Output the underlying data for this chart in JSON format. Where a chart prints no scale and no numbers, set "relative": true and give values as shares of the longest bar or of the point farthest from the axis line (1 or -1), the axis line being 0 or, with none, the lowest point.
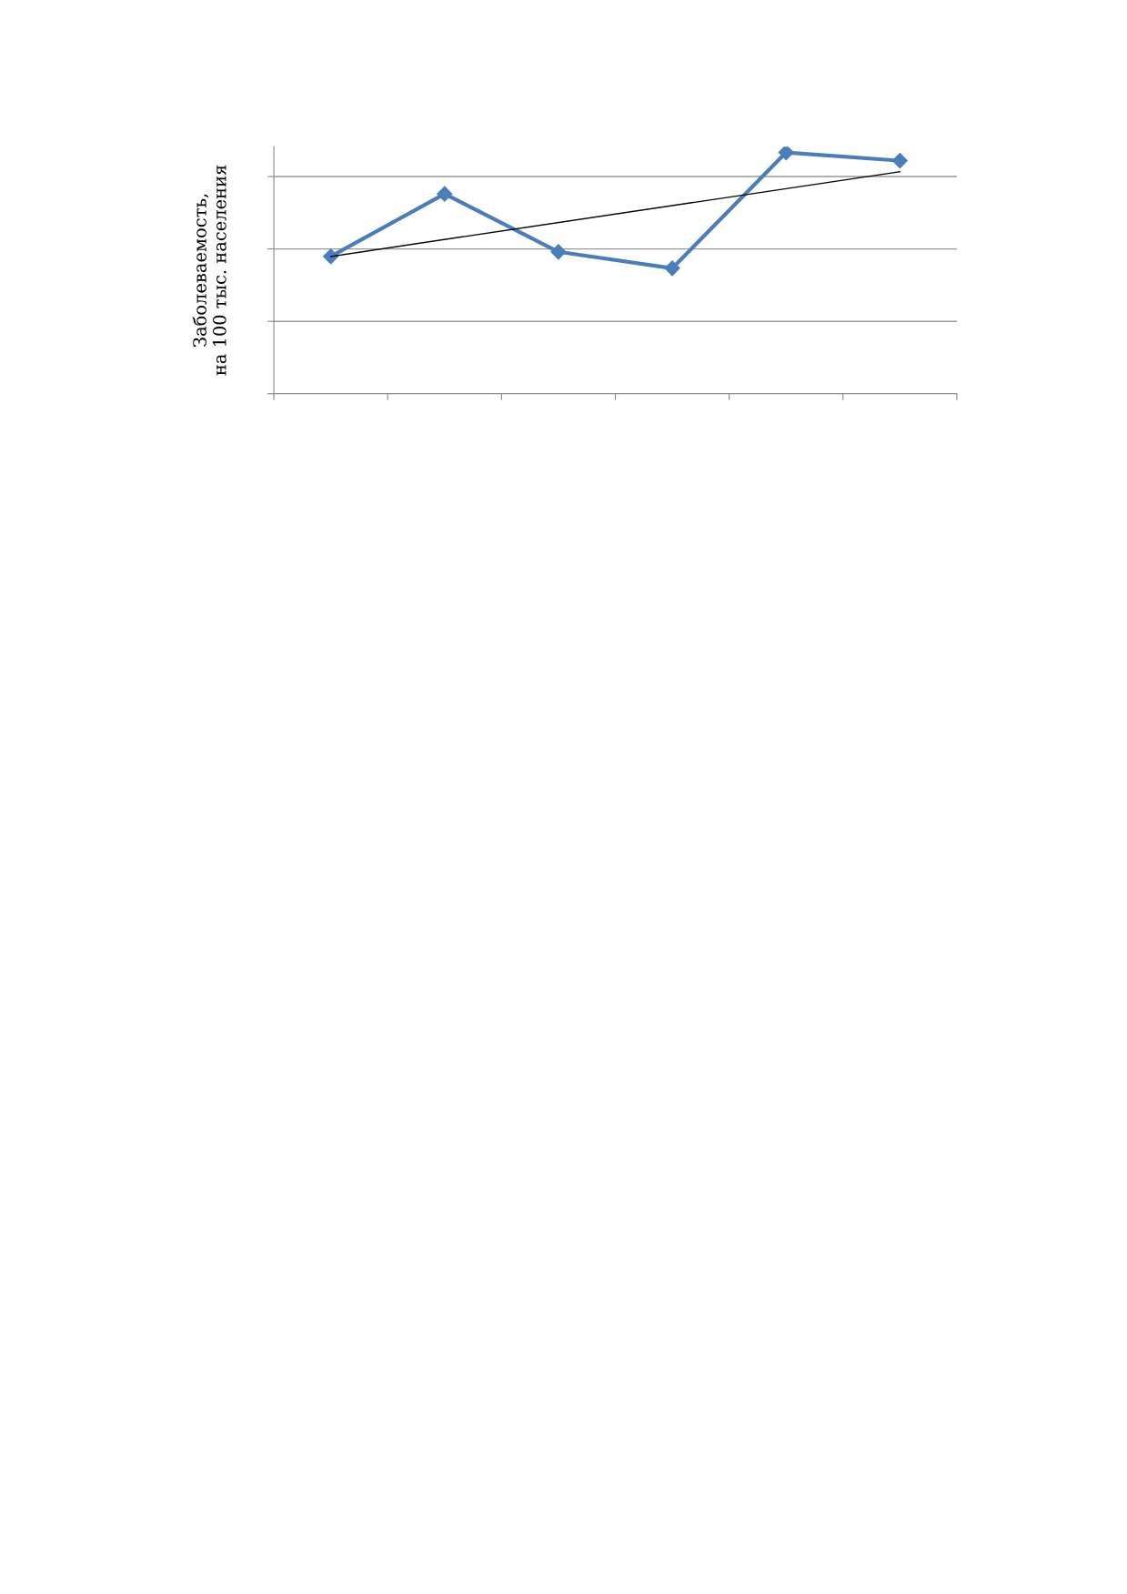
{
  "chart_data": {
    "type": "line",
    "relative": true,
    "ylabel": "Заболеваемость,\nна 100 тыс. населения",
    "categories": [
      null,
      null,
      null,
      null,
      null,
      null
    ],
    "grid": "y",
    "legend": false,
    "tick_labels": false,
    "series": [
      {
        "color": "#4a7ebb",
        "marker": "diamond",
        "line_style": "solid",
        "values": [
          0.569,
          0.828,
          0.588,
          0.52,
          1.0,
          0.966
        ]
      },
      {
        "type": "line",
        "color": "#000000",
        "marker": "none",
        "line_style": "solid",
        "values": [
          0.569,
          null,
          null,
          null,
          null,
          0.92
        ]
      }
    ]
  }
}
